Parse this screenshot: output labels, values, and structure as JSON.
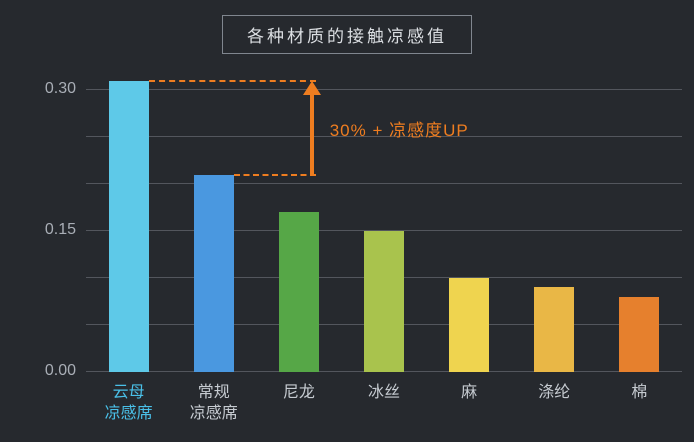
{
  "page": {
    "background": "#26292E"
  },
  "chart_data": {
    "type": "bar",
    "title": "各种材质的接触凉感值",
    "categories": [
      "云母凉感席",
      "常规凉感席",
      "尼龙",
      "冰丝",
      "麻",
      "涤纶",
      "棉"
    ],
    "category_lines": [
      [
        "云母",
        "凉感席"
      ],
      [
        "常规",
        "凉感席"
      ],
      [
        "尼龙"
      ],
      [
        "冰丝"
      ],
      [
        "麻"
      ],
      [
        "涤纶"
      ],
      [
        "棉"
      ]
    ],
    "values": [
      0.31,
      0.21,
      0.17,
      0.15,
      0.1,
      0.09,
      0.08
    ],
    "bar_colors": [
      "#5EC9E8",
      "#4A98E0",
      "#56A747",
      "#A9C34D",
      "#EFD44F",
      "#E9B746",
      "#E6802D"
    ],
    "label_colors": [
      "#4AC0E8",
      "#C6CBD1",
      "#C6CBD1",
      "#C6CBD1",
      "#C6CBD1",
      "#C6CBD1",
      "#C6CBD1"
    ],
    "xlabel": "",
    "ylabel": "",
    "ylim": [
      0,
      0.32
    ],
    "yticks": [
      "0.00",
      "0.15",
      "0.30"
    ],
    "grid_step": 0.05,
    "grid": true,
    "legend": false,
    "annotation": {
      "text": "30% + 凉感度UP",
      "color": "#EE7D20",
      "from_category": "常规凉感席",
      "to_category": "云母凉感席"
    },
    "theme": {
      "background": "#26292E",
      "gridline": "#53565D",
      "tick_label": "#A9AEB6",
      "title_text": "#DCDFE3",
      "title_border": "#80868F"
    }
  }
}
